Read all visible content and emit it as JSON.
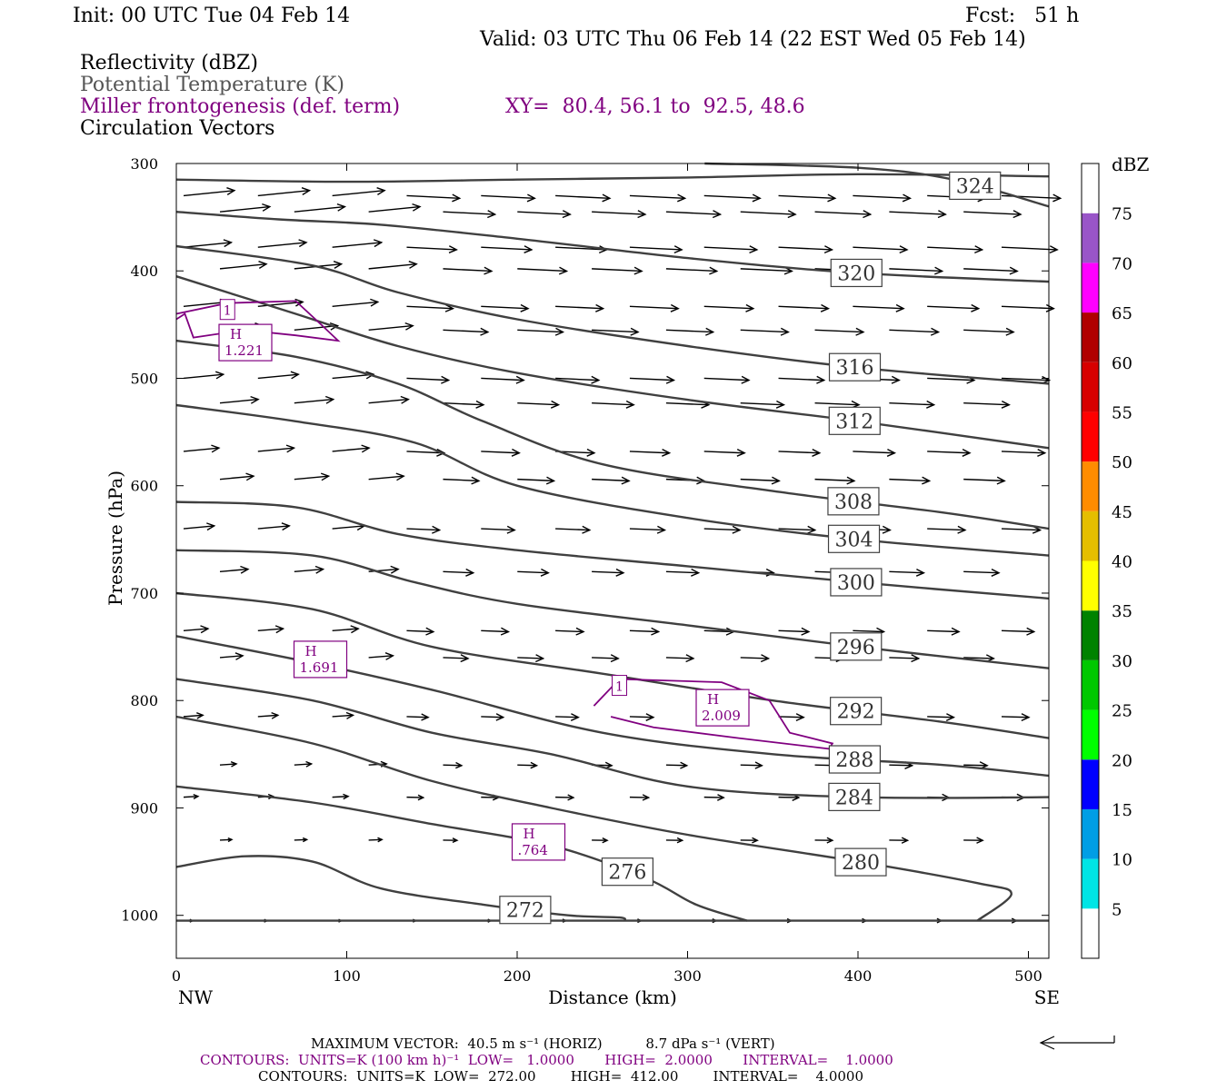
{
  "header": {
    "init": "Init: 00 UTC Tue 04 Feb 14",
    "fcst": "Fcst:   51 h",
    "valid": "Valid: 03 UTC Thu 06 Feb 14 (22 EST Wed 05 Feb 14)"
  },
  "legend": {
    "reflectivity": "Reflectivity (dBZ)",
    "theta": "Potential Temperature (K)",
    "miller": "Miller frontogenesis (def. term)",
    "xy": "XY=  80.4, 56.1 to  92.5, 48.6",
    "vectors": "Circulation Vectors"
  },
  "colorbar": {
    "title": "dBZ",
    "levels": [
      5,
      10,
      15,
      20,
      25,
      30,
      35,
      40,
      45,
      50,
      55,
      60,
      65,
      70,
      75
    ],
    "colors": [
      "#ffffff",
      "#00e5e5",
      "#009ee5",
      "#0000ff",
      "#00ff00",
      "#00c800",
      "#008200",
      "#ffff00",
      "#e5be00",
      "#ff8c00",
      "#ff0000",
      "#d70000",
      "#b00000",
      "#ff00ff",
      "#9955c8",
      "#ffffff"
    ]
  },
  "footer": {
    "vector_line": "MAXIMUM VECTOR:  40.5 m s⁻¹ (HORIZ)          8.7 dPa s⁻¹ (VERT)",
    "purple_line": "CONTOURS:  UNITS=K (100 km h)⁻¹  LOW=   1.0000       HIGH=  2.0000       INTERVAL=    1.0000",
    "black_line": "CONTOURS:  UNITS=K  LOW=  272.00        HIGH=  412.00        INTERVAL=    4.0000"
  },
  "chart_data": {
    "type": "cross-section",
    "xlabel": "Distance (km)",
    "ylabel": "Pressure (hPa)",
    "x_ticks": [
      0,
      100,
      200,
      300,
      400,
      500
    ],
    "y_ticks": [
      300,
      400,
      500,
      600,
      700,
      800,
      900,
      1000
    ],
    "xlim": [
      0,
      512
    ],
    "ylim": [
      1040,
      300
    ],
    "x_end_labels": {
      "left": "NW",
      "right": "SE"
    },
    "theta_contours": [
      {
        "points": [
          [
            0,
            315
          ],
          [
            100,
            317
          ],
          [
            200,
            315
          ],
          [
            300,
            313
          ],
          [
            400,
            310
          ],
          [
            512,
            312
          ]
        ],
        "label": null
      },
      {
        "points": [
          [
            310,
            300
          ],
          [
            400,
            304
          ],
          [
            456,
            315
          ],
          [
            512,
            340
          ]
        ],
        "label": "324"
      },
      {
        "points": [
          [
            0,
            345
          ],
          [
            60,
            352
          ],
          [
            120,
            357
          ],
          [
            200,
            370
          ],
          [
            300,
            388
          ],
          [
            400,
            402
          ],
          [
            512,
            410
          ]
        ],
        "label": "320"
      },
      {
        "points": [
          [
            0,
            377
          ],
          [
            80,
            395
          ],
          [
            130,
            420
          ],
          [
            200,
            445
          ],
          [
            300,
            470
          ],
          [
            400,
            490
          ],
          [
            512,
            505
          ]
        ],
        "label": "316"
      },
      {
        "points": [
          [
            0,
            405
          ],
          [
            70,
            440
          ],
          [
            130,
            470
          ],
          [
            200,
            495
          ],
          [
            300,
            520
          ],
          [
            400,
            540
          ],
          [
            512,
            565
          ]
        ],
        "label": "312"
      },
      {
        "points": [
          [
            0,
            465
          ],
          [
            70,
            480
          ],
          [
            130,
            505
          ],
          [
            180,
            540
          ],
          [
            250,
            580
          ],
          [
            350,
            605
          ],
          [
            450,
            625
          ],
          [
            512,
            640
          ]
        ],
        "label": "308"
      },
      {
        "points": [
          [
            0,
            525
          ],
          [
            70,
            540
          ],
          [
            140,
            560
          ],
          [
            200,
            600
          ],
          [
            300,
            630
          ],
          [
            400,
            650
          ],
          [
            512,
            665
          ]
        ],
        "label": "304"
      },
      {
        "points": [
          [
            0,
            615
          ],
          [
            70,
            620
          ],
          [
            130,
            645
          ],
          [
            200,
            660
          ],
          [
            300,
            675
          ],
          [
            400,
            690
          ],
          [
            512,
            705
          ]
        ],
        "label": "300"
      },
      {
        "points": [
          [
            0,
            660
          ],
          [
            80,
            665
          ],
          [
            140,
            690
          ],
          [
            200,
            710
          ],
          [
            300,
            730
          ],
          [
            400,
            750
          ],
          [
            512,
            770
          ]
        ],
        "label": "296"
      },
      {
        "points": [
          [
            0,
            700
          ],
          [
            80,
            715
          ],
          [
            150,
            750
          ],
          [
            250,
            775
          ],
          [
            350,
            800
          ],
          [
            450,
            820
          ],
          [
            512,
            835
          ]
        ],
        "label": "292"
      },
      {
        "points": [
          [
            0,
            740
          ],
          [
            80,
            765
          ],
          [
            150,
            790
          ],
          [
            250,
            830
          ],
          [
            350,
            850
          ],
          [
            450,
            860
          ],
          [
            512,
            870
          ]
        ],
        "label": "288"
      },
      {
        "points": [
          [
            0,
            780
          ],
          [
            80,
            800
          ],
          [
            150,
            830
          ],
          [
            220,
            850
          ],
          [
            300,
            880
          ],
          [
            400,
            890
          ],
          [
            512,
            890
          ]
        ],
        "label": "284"
      },
      {
        "points": [
          [
            0,
            815
          ],
          [
            80,
            840
          ],
          [
            150,
            875
          ],
          [
            220,
            900
          ],
          [
            300,
            925
          ],
          [
            400,
            950
          ],
          [
            470,
            970
          ],
          [
            490,
            980
          ],
          [
            470,
            1005
          ]
        ],
        "label": "280"
      },
      {
        "points": [
          [
            0,
            880
          ],
          [
            80,
            895
          ],
          [
            150,
            915
          ],
          [
            220,
            935
          ],
          [
            275,
            965
          ],
          [
            305,
            990
          ],
          [
            335,
            1005
          ]
        ],
        "label": "276"
      },
      {
        "points": [
          [
            0,
            955
          ],
          [
            40,
            945
          ],
          [
            80,
            950
          ],
          [
            120,
            975
          ],
          [
            180,
            990
          ],
          [
            230,
            1000
          ],
          [
            260,
            1002
          ],
          [
            263,
            1005
          ]
        ],
        "label": "272"
      },
      {
        "points": [
          [
            0,
            1005
          ],
          [
            512,
            1005
          ]
        ],
        "label": null
      }
    ],
    "miller_contours": [
      {
        "points": [
          [
            0,
            440
          ],
          [
            30,
            430
          ],
          [
            70,
            428
          ],
          [
            85,
            450
          ],
          [
            95,
            465
          ],
          [
            70,
            460
          ],
          [
            40,
            455
          ],
          [
            10,
            462
          ],
          [
            5,
            440
          ],
          [
            0,
            445
          ]
        ],
        "label": "1"
      },
      {
        "points": [
          [
            245,
            805
          ],
          [
            260,
            780
          ],
          [
            320,
            783
          ],
          [
            348,
            800
          ],
          [
            360,
            830
          ],
          [
            385,
            840
          ],
          [
            383,
            845
          ],
          [
            330,
            835
          ],
          [
            280,
            825
          ],
          [
            255,
            815
          ]
        ],
        "label": "1"
      }
    ],
    "maxima": [
      {
        "label": "H",
        "value": "1.221",
        "x": 40,
        "p": 465
      },
      {
        "label": "H",
        "value": "2.009",
        "x": 320,
        "p": 805
      },
      {
        "label": "H",
        "value": "1.691",
        "x": 84,
        "p": 760
      },
      {
        "label": "H",
        "value": ".764",
        "x": 212,
        "p": 930
      }
    ]
  }
}
